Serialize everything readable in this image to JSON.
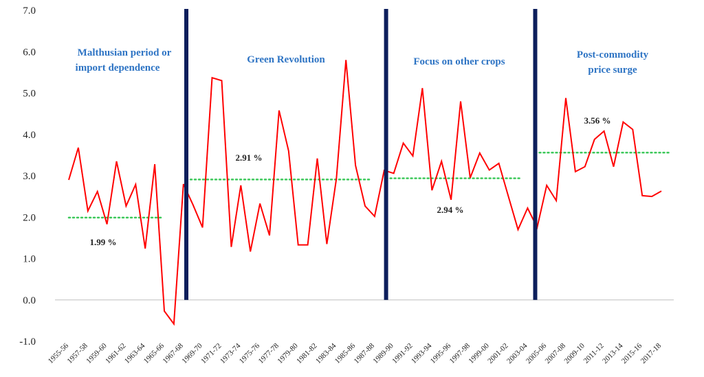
{
  "chart_data": {
    "type": "line",
    "title": "",
    "xlabel": "",
    "ylabel": "",
    "ylim": [
      -1.0,
      7.0
    ],
    "y_ticks": [
      "7.0",
      "6.0",
      "5.0",
      "4.0",
      "3.0",
      "2.0",
      "1.0",
      "0.0",
      "-1.0"
    ],
    "x_tick_labels": [
      "1955-56",
      "1957-58",
      "1959-60",
      "1961-62",
      "1963-64",
      "1965-66",
      "1967-68",
      "1969-70",
      "1971-72",
      "1973-74",
      "1975-76",
      "1977-78",
      "1979-80",
      "1981-82",
      "1983-84",
      "1985-86",
      "1987-88",
      "1989-90",
      "1991-92",
      "1993-94",
      "1995-96",
      "1997-98",
      "1999-00",
      "2001-02",
      "2003-04",
      "2005-06",
      "2007-08",
      "2009-10",
      "2011-12",
      "2013-14",
      "2015-16",
      "2017-18"
    ],
    "series": [
      {
        "color": "#ff0000",
        "values": [
          2.9,
          3.68,
          2.15,
          2.62,
          1.83,
          3.35,
          2.27,
          2.79,
          1.24,
          3.28,
          -0.27,
          -0.58,
          2.8,
          2.3,
          1.75,
          5.37,
          5.3,
          1.28,
          2.77,
          1.17,
          2.33,
          1.56,
          4.58,
          3.6,
          1.33,
          1.33,
          3.42,
          1.35,
          2.93,
          5.8,
          3.25,
          2.27,
          2.02,
          3.13,
          3.06,
          3.79,
          3.48,
          5.12,
          2.65,
          3.35,
          2.42,
          4.8,
          2.95,
          3.55,
          3.14,
          3.3,
          2.5,
          1.7,
          2.22,
          1.75,
          2.77,
          2.4,
          4.88,
          3.1,
          3.22,
          3.88,
          4.08,
          3.22,
          4.3,
          4.12,
          2.52,
          2.5,
          2.63
        ]
      }
    ],
    "period_dividers": [
      12.3,
      33.2,
      48.8
    ],
    "divider_color": "#0d1f5c",
    "averages": [
      {
        "label": "1.99 %",
        "value": 1.99,
        "from": 0,
        "to": 9.7
      },
      {
        "label": "2.91 %",
        "value": 2.91,
        "from": 12.3,
        "to": 31.7
      },
      {
        "label": "2.94 %",
        "value": 2.94,
        "from": 33.2,
        "to": 47.3
      },
      {
        "label": "3.56 %",
        "value": 3.56,
        "from": 48.8,
        "to": 63
      }
    ],
    "average_color": "#3cc85a",
    "periods": [
      {
        "lines": [
          "Malthusian period or",
          "import dependence"
        ]
      },
      {
        "lines": [
          "Green Revolution"
        ]
      },
      {
        "lines": [
          "Focus on other crops"
        ]
      },
      {
        "lines": [
          "Post-commodity",
          "price surge"
        ]
      }
    ],
    "period_label_color": "#2e74c4"
  }
}
